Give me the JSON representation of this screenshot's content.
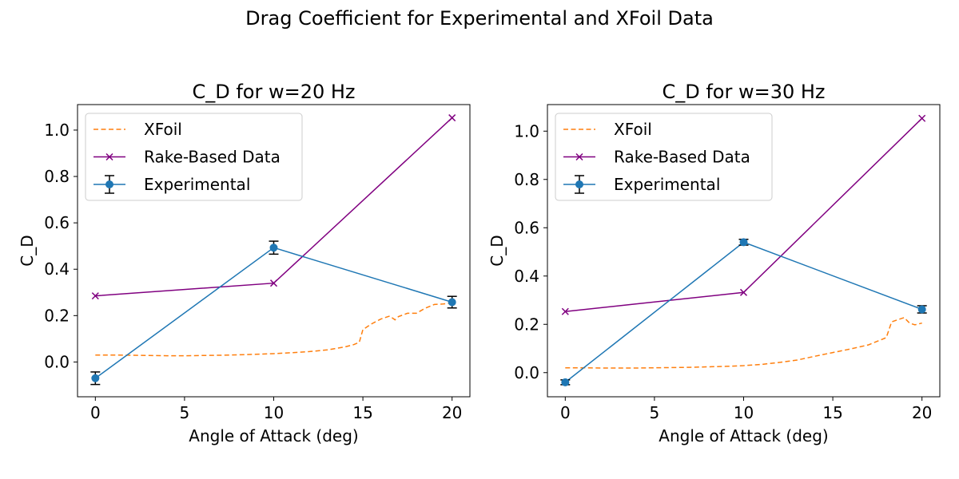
{
  "figure": {
    "suptitle": "Drag Coefficient for Experimental and XFoil Data"
  },
  "colors": {
    "xfoil": "#ff7f0e",
    "rake": "#800080",
    "experimental": "#1f77b4",
    "errorbar": "#000000"
  },
  "chart_data": [
    {
      "type": "line",
      "title": "C_D for w=20 Hz",
      "xlabel": "Angle of Attack (deg)",
      "ylabel": "C_D",
      "xlim": [
        -1,
        21
      ],
      "ylim": [
        -0.15,
        1.11
      ],
      "xticks": [
        0,
        5,
        10,
        15,
        20
      ],
      "xtick_labels": [
        "0",
        "5",
        "10",
        "15",
        "20"
      ],
      "yticks": [
        0.0,
        0.2,
        0.4,
        0.6,
        0.8,
        1.0
      ],
      "ytick_labels": [
        "0.0",
        "0.2",
        "0.4",
        "0.6",
        "0.8",
        "1.0"
      ],
      "legend_position": "upper-left",
      "series": [
        {
          "name": "XFoil",
          "style": "dashed",
          "x": [
            0,
            1,
            2,
            3,
            4,
            5,
            6,
            7,
            8,
            9,
            10,
            11,
            12,
            13,
            14,
            14.5,
            14.8,
            15,
            15.5,
            16,
            16.5,
            16.8,
            17,
            17.5,
            18,
            18.5,
            19,
            19.5,
            20
          ],
          "y": [
            0.03,
            0.03,
            0.029,
            0.028,
            0.027,
            0.027,
            0.028,
            0.029,
            0.031,
            0.033,
            0.036,
            0.04,
            0.045,
            0.052,
            0.065,
            0.075,
            0.085,
            0.14,
            0.165,
            0.185,
            0.198,
            0.182,
            0.196,
            0.21,
            0.21,
            0.232,
            0.248,
            0.25,
            0.255
          ]
        },
        {
          "name": "Rake-Based Data",
          "marker": "x",
          "x": [
            0,
            10,
            20
          ],
          "y": [
            0.285,
            0.34,
            1.053
          ]
        },
        {
          "name": "Experimental",
          "marker": "circle",
          "x": [
            0,
            10,
            20
          ],
          "y": [
            -0.07,
            0.493,
            0.258
          ],
          "yerr": [
            0.027,
            0.028,
            0.025
          ]
        }
      ]
    },
    {
      "type": "line",
      "title": "C_D for w=30 Hz",
      "xlabel": "Angle of Attack (deg)",
      "ylabel": "C_D",
      "xlim": [
        -1,
        21
      ],
      "ylim": [
        -0.1,
        1.11
      ],
      "xticks": [
        0,
        5,
        10,
        15,
        20
      ],
      "xtick_labels": [
        "0",
        "5",
        "10",
        "15",
        "20"
      ],
      "yticks": [
        0.0,
        0.2,
        0.4,
        0.6,
        0.8,
        1.0
      ],
      "ytick_labels": [
        "0.0",
        "0.2",
        "0.4",
        "0.6",
        "0.8",
        "1.0"
      ],
      "legend_position": "upper-left",
      "series": [
        {
          "name": "XFoil",
          "style": "dashed",
          "x": [
            0,
            1,
            2,
            3,
            4,
            5,
            6,
            7,
            8,
            9,
            10,
            11,
            12,
            13,
            14,
            15,
            16,
            17,
            18,
            18.3,
            18.6,
            19,
            19.3,
            19.6,
            20
          ],
          "y": [
            0.02,
            0.02,
            0.019,
            0.019,
            0.019,
            0.02,
            0.021,
            0.022,
            0.024,
            0.026,
            0.029,
            0.034,
            0.042,
            0.052,
            0.068,
            0.083,
            0.098,
            0.115,
            0.145,
            0.21,
            0.218,
            0.228,
            0.205,
            0.198,
            0.205
          ]
        },
        {
          "name": "Rake-Based Data",
          "marker": "x",
          "x": [
            0,
            10,
            20
          ],
          "y": [
            0.253,
            0.332,
            1.053
          ]
        },
        {
          "name": "Experimental",
          "marker": "circle",
          "x": [
            0,
            10,
            20
          ],
          "y": [
            -0.04,
            0.54,
            0.262
          ],
          "yerr": [
            0.01,
            0.012,
            0.015
          ]
        }
      ]
    }
  ]
}
